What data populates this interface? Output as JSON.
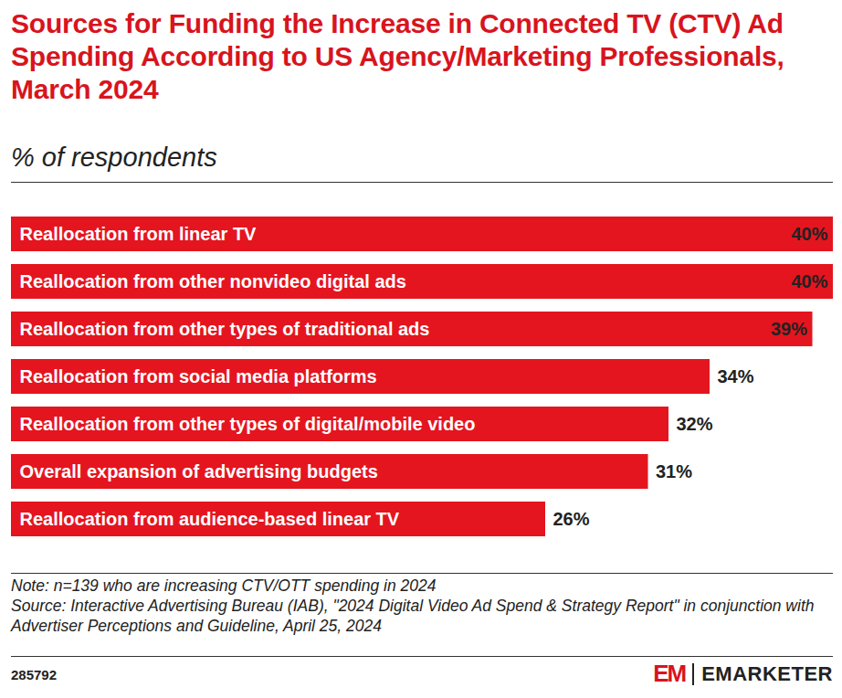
{
  "chart_data": {
    "type": "bar",
    "orientation": "horizontal",
    "title": "Sources for Funding the Increase in Connected TV (CTV) Ad Spending According to US Agency/Marketing Professionals, March 2024",
    "subtitle": "% of respondents",
    "categories": [
      "Reallocation from linear TV",
      "Reallocation from other nonvideo digital ads",
      "Reallocation from other types of traditional ads",
      "Reallocation from social media platforms",
      "Reallocation from other types of digital/mobile video",
      "Overall expansion of advertising budgets",
      "Reallocation from audience-based linear TV"
    ],
    "values": [
      40,
      40,
      39,
      34,
      32,
      31,
      26
    ],
    "value_labels": [
      "40%",
      "40%",
      "39%",
      "34%",
      "32%",
      "31%",
      "26%"
    ],
    "color": "#e4151f",
    "xlim": [
      0,
      40
    ],
    "data_labels": true,
    "tick_labels": false,
    "grid": false,
    "note": "Note: n=139 who are increasing CTV/OTT spending in 2024",
    "source": "Source: Interactive Advertising Bureau (IAB), \"2024 Digital Video Ad Spend & Strategy Report\" in conjunction with Advertiser Perceptions and Guideline, April 25, 2024",
    "chart_id": "285792",
    "logo": "EM",
    "brand": "EMARKETER"
  }
}
